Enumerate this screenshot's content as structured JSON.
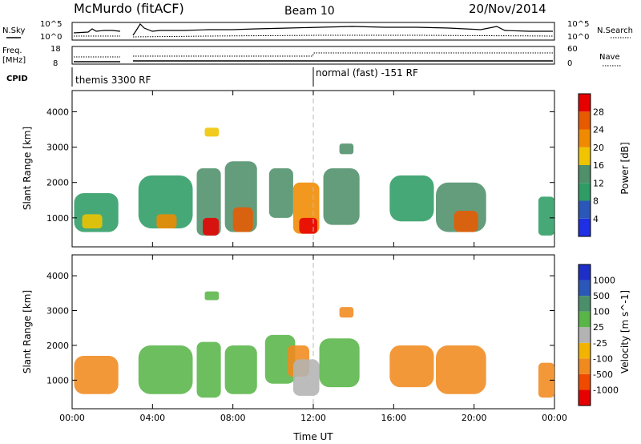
{
  "header": {
    "station": "McMurdo (fitACF)",
    "beam": "Beam 10",
    "date": "20/Nov/2014"
  },
  "status_panels": {
    "nsky_label": "N.Sky",
    "nsearch_label": "N.Search",
    "freq_label_line1": "Freq.",
    "freq_label_line2": "[MHz]",
    "nave_label": "Nave",
    "cpid_label": "CPID",
    "noise_ticks": [
      "10^5",
      "10^0"
    ],
    "freq_ticks": [
      "18",
      "8"
    ],
    "nave_ticks": [
      "60",
      "0"
    ],
    "cpid_segments": [
      {
        "label": "themis 3300 RF",
        "start_hour": 0.0
      },
      {
        "label": "normal (fast) -151 RF",
        "start_hour": 12.0
      }
    ]
  },
  "colors": {
    "power_scale": [
      "#1e2fe6",
      "#2b58b8",
      "#2e9c64",
      "#4f8f6a",
      "#f0c400",
      "#f08a00",
      "#e85a00",
      "#e60000"
    ],
    "velocity_scale": [
      "#e60000",
      "#f04a00",
      "#f08a1e",
      "#f2b400",
      "#b3b3b3",
      "#59b548",
      "#4a8f6a",
      "#2b58b8",
      "#1e2fc8"
    ]
  },
  "chart_data": [
    {
      "type": "heatmap",
      "title": "",
      "xlabel": "",
      "ylabel": "Slant Range [km]",
      "xlim": [
        0,
        24
      ],
      "ylim": [
        180,
        4600
      ],
      "x_ticks": [
        "00:00",
        "04:00",
        "08:00",
        "12:00",
        "16:00",
        "20:00",
        "00:00"
      ],
      "y_ticks": [
        1000,
        2000,
        3000,
        4000
      ],
      "colorbar_label": "Power [dB]",
      "colorbar_ticks": [
        "4",
        "8",
        "12",
        "16",
        "20",
        "24",
        "28"
      ],
      "colorbar_range": [
        0,
        30
      ],
      "echo_regions": [
        {
          "t0": 0.1,
          "t1": 2.3,
          "r0": 600,
          "r1": 1700,
          "value": 10
        },
        {
          "t0": 0.5,
          "t1": 1.5,
          "r0": 700,
          "r1": 1100,
          "value": 18
        },
        {
          "t0": 3.3,
          "t1": 6.0,
          "r0": 700,
          "r1": 2200,
          "value": 10
        },
        {
          "t0": 4.2,
          "t1": 5.2,
          "r0": 700,
          "r1": 1100,
          "value": 22
        },
        {
          "t0": 6.2,
          "t1": 7.4,
          "r0": 500,
          "r1": 2400,
          "value": 12
        },
        {
          "t0": 6.5,
          "t1": 7.3,
          "r0": 500,
          "r1": 1000,
          "value": 28
        },
        {
          "t0": 7.6,
          "t1": 9.2,
          "r0": 600,
          "r1": 2600,
          "value": 14
        },
        {
          "t0": 8.0,
          "t1": 9.0,
          "r0": 600,
          "r1": 1300,
          "value": 26
        },
        {
          "t0": 9.8,
          "t1": 11.0,
          "r0": 1000,
          "r1": 2400,
          "value": 12
        },
        {
          "t0": 11.0,
          "t1": 12.3,
          "r0": 550,
          "r1": 2000,
          "value": 20
        },
        {
          "t0": 11.3,
          "t1": 12.2,
          "r0": 550,
          "r1": 1000,
          "value": 28
        },
        {
          "t0": 12.5,
          "t1": 14.3,
          "r0": 800,
          "r1": 2400,
          "value": 12
        },
        {
          "t0": 15.8,
          "t1": 18.0,
          "r0": 900,
          "r1": 2200,
          "value": 10
        },
        {
          "t0": 18.1,
          "t1": 20.6,
          "r0": 600,
          "r1": 2000,
          "value": 14
        },
        {
          "t0": 19.0,
          "t1": 20.2,
          "r0": 600,
          "r1": 1200,
          "value": 26
        },
        {
          "t0": 6.6,
          "t1": 7.3,
          "r0": 3300,
          "r1": 3550,
          "value": 16
        },
        {
          "t0": 13.3,
          "t1": 14.0,
          "r0": 2800,
          "r1": 3100,
          "value": 12
        },
        {
          "t0": 23.2,
          "t1": 24.0,
          "r0": 500,
          "r1": 1600,
          "value": 10
        }
      ]
    },
    {
      "type": "heatmap",
      "title": "",
      "xlabel": "Time UT",
      "ylabel": "Slant Range [km]",
      "xlim": [
        0,
        24
      ],
      "ylim": [
        180,
        4600
      ],
      "x_ticks": [
        "00:00",
        "04:00",
        "08:00",
        "12:00",
        "16:00",
        "20:00",
        "00:00"
      ],
      "y_ticks": [
        1000,
        2000,
        3000,
        4000
      ],
      "colorbar_label": "Velocity [m s^-1]",
      "colorbar_ticks": [
        "1000",
        "500",
        "100",
        "25",
        "-25",
        "-100",
        "-500",
        "-1000"
      ],
      "echo_regions": [
        {
          "t0": 0.1,
          "t1": 2.3,
          "r0": 600,
          "r1": 1700,
          "value": -100
        },
        {
          "t0": 3.3,
          "t1": 6.0,
          "r0": 600,
          "r1": 2000,
          "value": 80
        },
        {
          "t0": 6.2,
          "t1": 7.4,
          "r0": 500,
          "r1": 2100,
          "value": 80
        },
        {
          "t0": 7.6,
          "t1": 9.2,
          "r0": 600,
          "r1": 2000,
          "value": 80
        },
        {
          "t0": 9.6,
          "t1": 11.1,
          "r0": 900,
          "r1": 2300,
          "value": 80
        },
        {
          "t0": 10.7,
          "t1": 11.8,
          "r0": 1100,
          "r1": 2000,
          "value": -150
        },
        {
          "t0": 11.0,
          "t1": 12.3,
          "r0": 550,
          "r1": 1600,
          "value": 0
        },
        {
          "t0": 12.3,
          "t1": 14.3,
          "r0": 800,
          "r1": 2200,
          "value": 80
        },
        {
          "t0": 15.8,
          "t1": 18.0,
          "r0": 800,
          "r1": 2000,
          "value": -300
        },
        {
          "t0": 18.1,
          "t1": 20.6,
          "r0": 600,
          "r1": 2000,
          "value": -300
        },
        {
          "t0": 6.6,
          "t1": 7.3,
          "r0": 3300,
          "r1": 3550,
          "value": 80
        },
        {
          "t0": 13.3,
          "t1": 14.0,
          "r0": 2800,
          "r1": 3100,
          "value": -150
        },
        {
          "t0": 23.2,
          "t1": 24.0,
          "r0": 500,
          "r1": 1500,
          "value": -100
        }
      ]
    }
  ]
}
